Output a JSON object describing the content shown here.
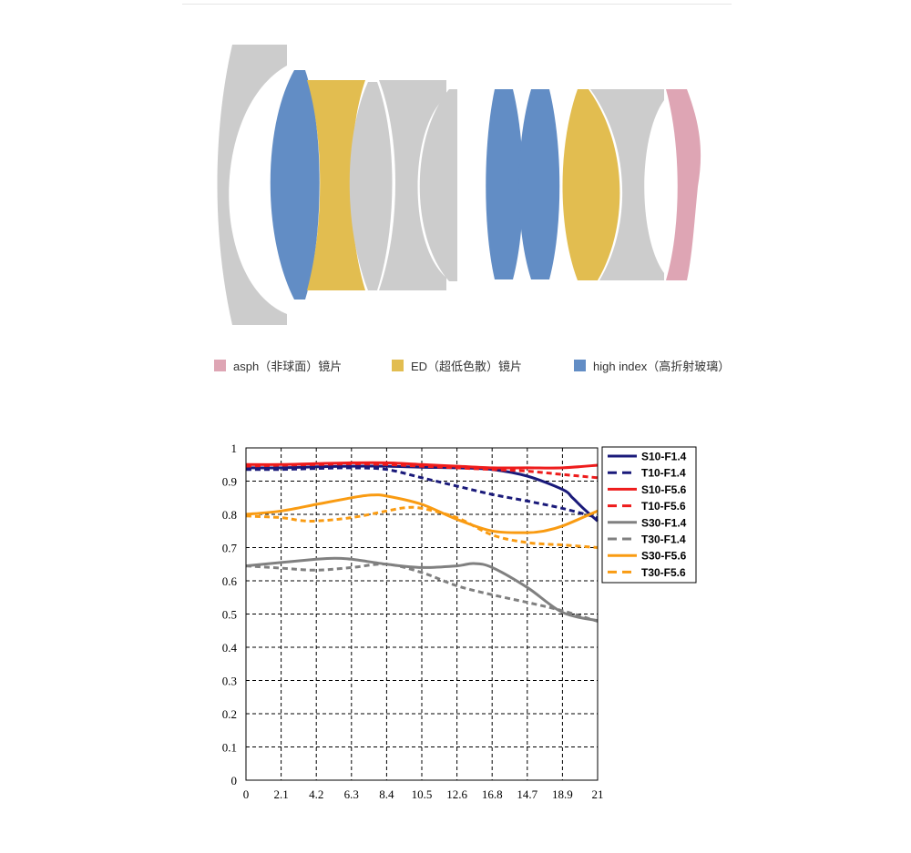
{
  "colors": {
    "asph": "#dea5b4",
    "ed": "#e2bd50",
    "high_index": "#628dc5",
    "normal_glass": "#cccccc"
  },
  "lens_legend": [
    {
      "label": "asph（非球面）镜片",
      "color": "#dea5b4"
    },
    {
      "label": "ED（超低色散）镜片",
      "color": "#e2bd50"
    },
    {
      "label": "high index（高折射玻璃）",
      "color": "#628dc5"
    }
  ],
  "chart_data": {
    "type": "line",
    "title": "",
    "xlabel": "",
    "ylabel": "",
    "xlim": [
      0,
      21
    ],
    "ylim": [
      0,
      1
    ],
    "x_ticks": [
      "0",
      "2.1",
      "4.2",
      "6.3",
      "8.4",
      "10.5",
      "12.6",
      "16.8",
      "14.7",
      "18.9",
      "21"
    ],
    "y_ticks": [
      "0",
      "0.1",
      "0.2",
      "0.3",
      "0.4",
      "0.5",
      "0.6",
      "0.7",
      "0.8",
      "0.9",
      "1"
    ],
    "grid": true,
    "legend_position": "right",
    "series": [
      {
        "name": "S10-F1.4",
        "color": "#1a1a7a",
        "dash": "solid",
        "x": [
          0,
          2.1,
          4.2,
          6.3,
          8.4,
          10.5,
          12.6,
          14.7,
          16.8,
          18.9,
          19.5,
          20.1,
          21
        ],
        "y": [
          0.94,
          0.94,
          0.943,
          0.945,
          0.945,
          0.942,
          0.94,
          0.935,
          0.915,
          0.875,
          0.85,
          0.82,
          0.78
        ]
      },
      {
        "name": "T10-F1.4",
        "color": "#1a1a7a",
        "dash": "dashed",
        "x": [
          0,
          2.1,
          4.2,
          6.3,
          8.4,
          10.5,
          12.6,
          14.7,
          16.8,
          18.9,
          21
        ],
        "y": [
          0.935,
          0.935,
          0.938,
          0.94,
          0.935,
          0.91,
          0.885,
          0.86,
          0.84,
          0.818,
          0.79
        ]
      },
      {
        "name": "S10-F5.6",
        "color": "#ee1c1c",
        "dash": "solid",
        "x": [
          0,
          2.1,
          4.2,
          6.3,
          8.4,
          10.5,
          12.6,
          14.7,
          16.8,
          18.9,
          21
        ],
        "y": [
          0.95,
          0.95,
          0.953,
          0.955,
          0.955,
          0.95,
          0.945,
          0.94,
          0.94,
          0.94,
          0.948
        ]
      },
      {
        "name": "T10-F5.6",
        "color": "#ee1c1c",
        "dash": "dashed",
        "x": [
          0,
          2.1,
          4.2,
          6.3,
          8.4,
          10.5,
          12.6,
          14.7,
          16.8,
          18.9,
          21
        ],
        "y": [
          0.945,
          0.948,
          0.95,
          0.952,
          0.95,
          0.945,
          0.94,
          0.935,
          0.93,
          0.92,
          0.91
        ]
      },
      {
        "name": "S30-F1.4",
        "color": "#808080",
        "dash": "solid",
        "x": [
          0,
          2.1,
          4.2,
          5.3,
          6.3,
          8.4,
          10.5,
          12.6,
          13.6,
          14.7,
          16.8,
          18.9,
          21
        ],
        "y": [
          0.645,
          0.655,
          0.665,
          0.668,
          0.665,
          0.65,
          0.64,
          0.645,
          0.652,
          0.64,
          0.58,
          0.505,
          0.48
        ]
      },
      {
        "name": "T30-F1.4",
        "color": "#808080",
        "dash": "dashed",
        "x": [
          0,
          2.1,
          4.2,
          6.3,
          8.4,
          10.5,
          12.6,
          14.7,
          16.8,
          18.9,
          21
        ],
        "y": [
          0.645,
          0.638,
          0.632,
          0.64,
          0.65,
          0.625,
          0.585,
          0.558,
          0.535,
          0.51,
          0.478
        ]
      },
      {
        "name": "S30-F5.6",
        "color": "#f99b12",
        "dash": "solid",
        "x": [
          0,
          2.1,
          4.2,
          6.3,
          7.5,
          8.4,
          10.5,
          12.6,
          14.7,
          16.8,
          17.8,
          18.9,
          21
        ],
        "y": [
          0.8,
          0.81,
          0.83,
          0.85,
          0.858,
          0.855,
          0.83,
          0.785,
          0.75,
          0.745,
          0.75,
          0.765,
          0.81
        ]
      },
      {
        "name": "T30-F5.6",
        "color": "#f99b12",
        "dash": "dashed",
        "x": [
          0,
          2.1,
          3.2,
          4.2,
          6.3,
          8.4,
          9.5,
          10.5,
          12.6,
          14.7,
          16.8,
          18.9,
          21
        ],
        "y": [
          0.795,
          0.79,
          0.782,
          0.78,
          0.79,
          0.81,
          0.82,
          0.818,
          0.79,
          0.738,
          0.715,
          0.708,
          0.7
        ]
      }
    ]
  }
}
